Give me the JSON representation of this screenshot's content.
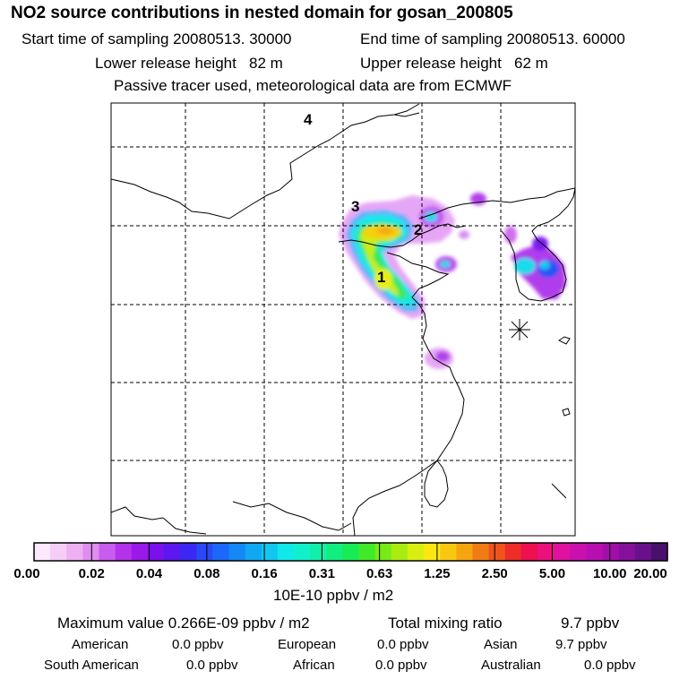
{
  "header": {
    "title": "NO2 source contributions in nested domain for gosan_200805",
    "start_label": "Start time of sampling 20080513. 30000",
    "end_label": "End time of sampling 20080513. 60000",
    "lower_label": "Lower release height   82 m",
    "upper_label": "Upper release height   62 m",
    "tracer_label": "Passive tracer used, meteorological data are from ECMWF"
  },
  "chart_data": {
    "type": "heatmap",
    "title": "NO2 source contributions in nested domain for gosan_200805",
    "source_labels": [
      "4",
      "3",
      "2",
      "1"
    ],
    "receptor_marker": "gosan (asterisk)",
    "colorbar": {
      "tick_labels": [
        "0.00",
        "0.02",
        "0.04",
        "0.08",
        "0.16",
        "0.31",
        "0.63",
        "1.25",
        "2.50",
        "5.00",
        "10.00",
        "20.00"
      ],
      "units": "10E-10 ppbv / m2",
      "colors": [
        "#fde8fd",
        "#f6cdf6",
        "#eeb0f0",
        "#e08cf0",
        "#c95cee",
        "#b432ec",
        "#9a18e8",
        "#7a10ec",
        "#5c18f0",
        "#3c28f4",
        "#2a48f8",
        "#1c68fa",
        "#1488f6",
        "#10a8f2",
        "#10c8ee",
        "#10e8ea",
        "#10f0cc",
        "#10f0a8",
        "#10ee80",
        "#18ec54",
        "#40ea28",
        "#78ea18",
        "#aaec10",
        "#d8ee10",
        "#fae810",
        "#f8c810",
        "#f6a410",
        "#f27c14",
        "#f0541c",
        "#ee2c28",
        "#ee1050",
        "#ec107c",
        "#e010a0",
        "#cc10b0",
        "#b810b0",
        "#a010a8",
        "#86109c",
        "#6a108c",
        "#4a106c"
      ]
    }
  },
  "summary": {
    "max_label": "Maximum value  0.266E-09 ppbv / m2",
    "total_label": "Total mixing ratio",
    "total_value": "9.7 ppbv"
  },
  "regions": [
    {
      "name": "American",
      "value": "0.0 ppbv"
    },
    {
      "name": "European",
      "value": "0.0 ppbv"
    },
    {
      "name": "Asian",
      "value": "9.7 ppbv"
    },
    {
      "name": "South American",
      "value": "0.0 ppbv"
    },
    {
      "name": "African",
      "value": "0.0 ppbv"
    },
    {
      "name": "Australian",
      "value": "0.0 ppbv"
    }
  ]
}
